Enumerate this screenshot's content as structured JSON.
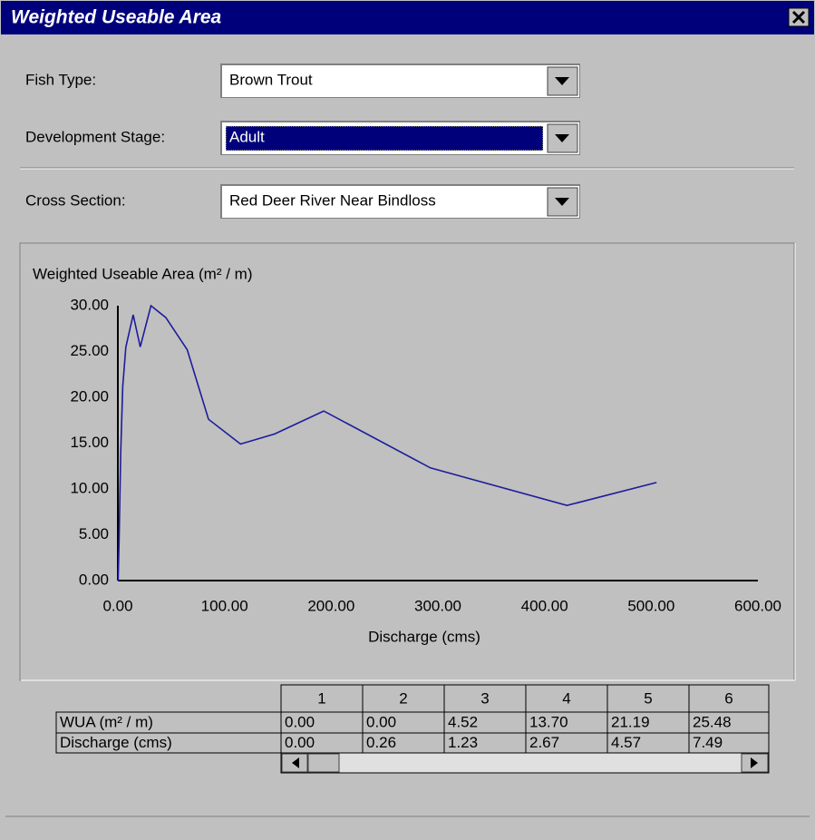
{
  "window": {
    "title": "Weighted Useable Area"
  },
  "form": {
    "fields": [
      {
        "label": "Fish Type:",
        "value": "Brown Trout"
      },
      {
        "label": "Development Stage:",
        "value": "Adult"
      },
      {
        "label": "Cross Section:",
        "value": "Red Deer River Near Bindloss"
      }
    ]
  },
  "chart_data": {
    "type": "line",
    "ylabel": "Weighted Useable Area (m² / m)",
    "xlabel": "Discharge (cms)",
    "x": [
      0,
      0.26,
      1.23,
      2.67,
      4.57,
      7.49,
      14.4,
      21,
      31,
      45,
      65,
      85,
      115,
      147,
      193,
      293,
      421,
      505
    ],
    "values": [
      0,
      0,
      4.52,
      13.7,
      21.19,
      25.48,
      29.0,
      25.5,
      30.0,
      28.7,
      25.2,
      17.6,
      14.9,
      16.0,
      18.5,
      12.3,
      8.2,
      10.7
    ],
    "color": "#1c1c9c",
    "xlim": [
      0,
      600
    ],
    "xticks": [
      {
        "value": 0,
        "label": "0.00"
      },
      {
        "value": 100,
        "label": "100.00"
      },
      {
        "value": 200,
        "label": "200.00"
      },
      {
        "value": 300,
        "label": "300.00"
      },
      {
        "value": 400,
        "label": "400.00"
      },
      {
        "value": 500,
        "label": "500.00"
      },
      {
        "value": 600,
        "label": "600.00"
      }
    ],
    "ylim": [
      0,
      30
    ],
    "yticks": [
      {
        "value": 0,
        "label": "0.00"
      },
      {
        "value": 5,
        "label": "5.00"
      },
      {
        "value": 10,
        "label": "10.00"
      },
      {
        "value": 15,
        "label": "15.00"
      },
      {
        "value": 20,
        "label": "20.00"
      },
      {
        "value": 25,
        "label": "25.00"
      },
      {
        "value": 30,
        "label": "30.00"
      }
    ],
    "grid": false
  },
  "table": {
    "columns": [
      "1",
      "2",
      "3",
      "4",
      "5",
      "6"
    ],
    "rows": [
      {
        "label": "WUA (m² / m)",
        "cells": [
          "0.00",
          "0.00",
          "4.52",
          "13.70",
          "21.19",
          "25.48"
        ]
      },
      {
        "label": "Discharge (cms)",
        "cells": [
          "0.00",
          "0.26",
          "1.23",
          "2.67",
          "4.57",
          "7.49"
        ]
      }
    ]
  }
}
